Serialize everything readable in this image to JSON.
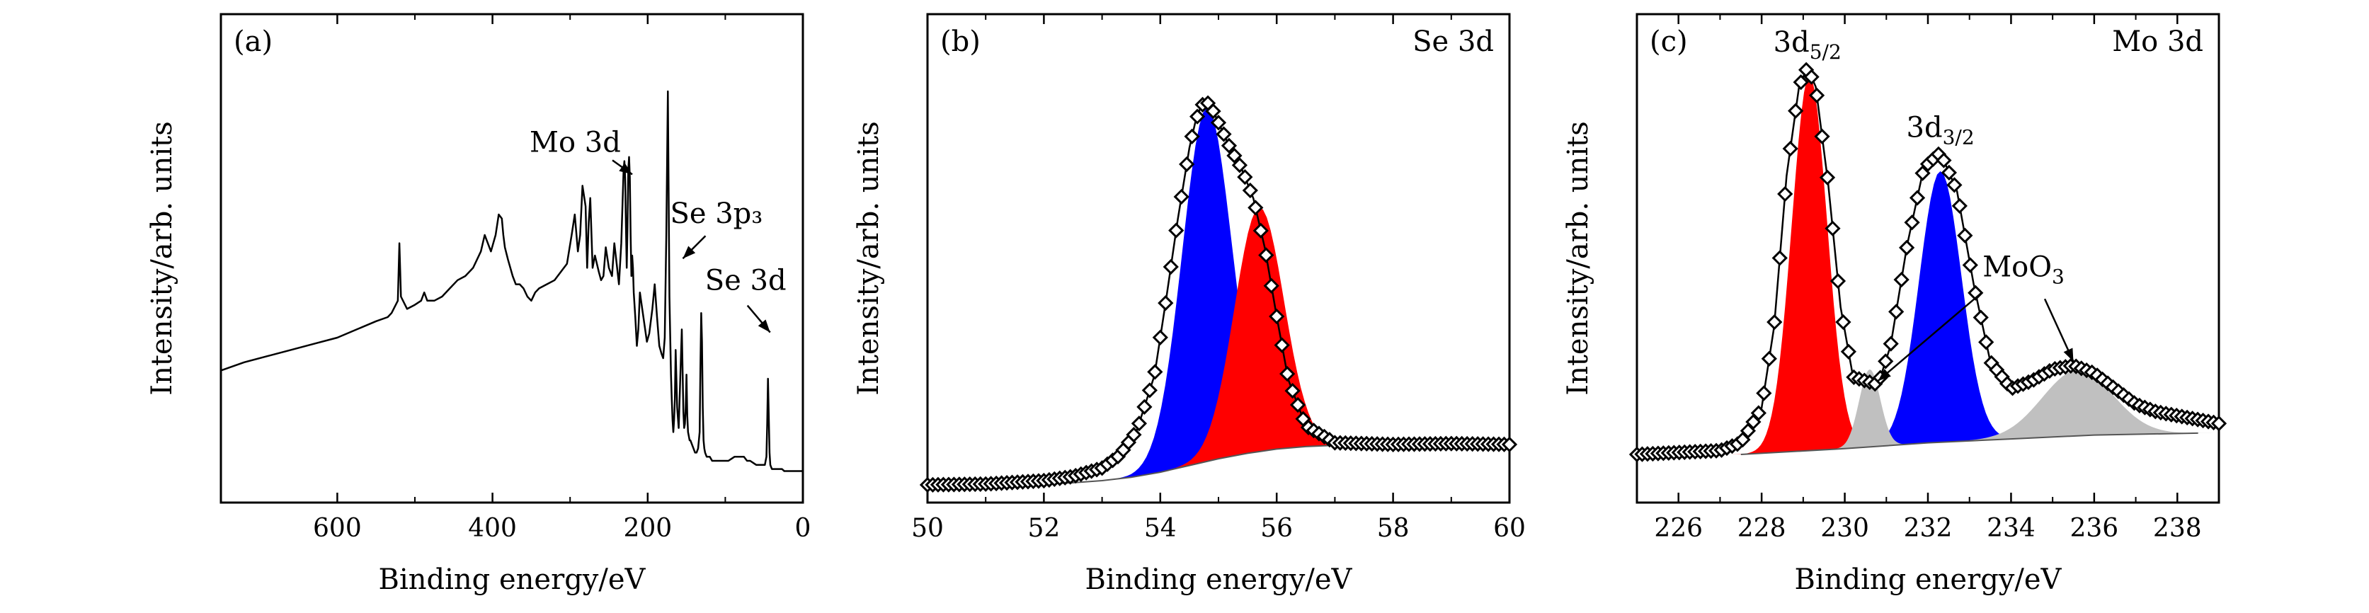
{
  "chart_data": [
    {
      "type": "line",
      "panel": "(a)",
      "xlabel": "Binding energy/eV",
      "ylabel": "Intensity/arb. units",
      "xlim": [
        750,
        0
      ],
      "xreversed": true,
      "ylim": [
        0,
        100
      ],
      "xticks": [
        600,
        400,
        200,
        0
      ],
      "annotations": [
        {
          "text": "Mo 3d",
          "x": 229,
          "y": 82
        },
        {
          "text": "Se 3p₃",
          "x": 162,
          "y": 56
        },
        {
          "text": "Se 3d",
          "x": 55,
          "y": 38
        }
      ],
      "series": [
        {
          "color": "#000000",
          "x": [
            750,
            720,
            690,
            660,
            630,
            600,
            575,
            550,
            535,
            530,
            522,
            520,
            518,
            510,
            500,
            492,
            488,
            484,
            475,
            465,
            455,
            445,
            435,
            425,
            415,
            410,
            406,
            402,
            396,
            392,
            388,
            386,
            384,
            380,
            374,
            370,
            365,
            360,
            355,
            350,
            345,
            340,
            330,
            320,
            312,
            304,
            298,
            294,
            290,
            287,
            284,
            280,
            278,
            276,
            274,
            271,
            268,
            263,
            260,
            257,
            254,
            250,
            246,
            243,
            240,
            237,
            234,
            232,
            231,
            230,
            229,
            228,
            227,
            226,
            225,
            224,
            223,
            222,
            221,
            220,
            219,
            218,
            216,
            214,
            212,
            210,
            207,
            204,
            201,
            198,
            194,
            191,
            188,
            185,
            182,
            180,
            178,
            176,
            174,
            172,
            170,
            169,
            168,
            167,
            166,
            165,
            164,
            162,
            160,
            158,
            156,
            155,
            154,
            153,
            152,
            151,
            150,
            149,
            148,
            147,
            146,
            145,
            143,
            141,
            139,
            137,
            135,
            133,
            132,
            131,
            130,
            129,
            128,
            127,
            126,
            124,
            122,
            120,
            117,
            113,
            109,
            105,
            100,
            96,
            92,
            88,
            84,
            80,
            76,
            72,
            68,
            64,
            60,
            56,
            52,
            49,
            47,
            46,
            45,
            44,
            43,
            42,
            40,
            38,
            36,
            33,
            30,
            27,
            24,
            20,
            16,
            12,
            8,
            4,
            0
          ],
          "y": [
            27,
            29,
            30.5,
            32,
            33.5,
            35,
            37,
            39,
            40,
            41,
            44,
            58,
            45,
            42,
            43,
            44,
            46,
            44,
            44,
            45,
            47,
            49,
            50,
            52,
            56,
            60,
            58,
            56,
            60,
            65,
            64,
            60,
            57,
            54,
            50,
            48,
            48,
            47,
            45,
            44,
            46,
            47,
            48,
            49,
            51,
            53,
            60,
            65,
            56,
            60,
            72,
            67,
            52,
            63,
            69,
            52,
            55,
            51,
            49,
            50,
            57,
            52,
            50,
            58,
            53,
            48,
            58,
            70,
            76,
            78,
            74,
            62,
            52,
            62,
            76,
            79,
            74,
            60,
            50,
            55,
            52,
            46,
            40,
            33,
            37,
            46,
            42,
            38,
            34,
            36,
            42,
            48,
            40,
            33,
            31,
            30,
            35,
            60,
            95,
            45,
            26,
            20,
            15,
            12,
            15,
            20,
            32,
            18,
            13,
            25,
            37,
            27,
            17,
            13,
            14,
            18,
            26,
            16,
            12,
            11,
            10,
            10,
            9,
            8,
            7,
            7,
            8,
            12,
            28,
            41,
            34,
            18,
            10,
            8,
            7,
            6,
            6,
            6,
            5,
            5,
            5,
            5,
            5,
            5,
            5.5,
            6,
            6,
            6,
            6,
            5,
            5,
            4.5,
            4,
            4,
            4,
            4,
            6,
            14,
            25,
            16,
            7,
            4,
            3,
            3,
            3,
            3,
            3,
            3,
            2.5,
            2.5,
            2.5,
            2.5,
            2.5,
            2.5,
            2.5
          ]
        }
      ]
    },
    {
      "type": "area",
      "panel": "(b)",
      "title": "Se 3d",
      "xlabel": "Binding energy/eV",
      "ylabel": "Intensity/arb. units",
      "xlim": [
        50,
        60
      ],
      "ylim": [
        0,
        100
      ],
      "xticks": [
        50,
        52,
        54,
        56,
        58,
        60
      ],
      "baseline": {
        "x": [
          50,
          51,
          52,
          52.5,
          53,
          53.5,
          54,
          54.5,
          55,
          55.5,
          56,
          56.5,
          57,
          58,
          59,
          60
        ],
        "y": [
          0,
          0,
          0.2,
          0.5,
          1,
          1.8,
          3,
          4.6,
          6.2,
          7.5,
          8.5,
          9.1,
          9.4,
          9.5,
          9.5,
          9.5
        ]
      },
      "series": [
        {
          "name": "",
          "color": "#0000ff",
          "center": 54.8,
          "fwhm": 1.0,
          "height": 84
        },
        {
          "name": "",
          "color": "#ff0000",
          "center": 55.7,
          "fwhm": 1.0,
          "height": 58
        }
      ],
      "envelope": {
        "x": [
          50,
          51,
          52,
          52.5,
          53,
          53.3,
          53.6,
          53.9,
          54.1,
          54.3,
          54.5,
          54.6,
          54.7,
          54.8,
          54.9,
          55,
          55.2,
          55.4,
          55.6,
          55.8,
          56,
          56.2,
          56.5,
          57,
          58,
          59,
          60
        ],
        "y": [
          0,
          0.2,
          1,
          2,
          4,
          7,
          13,
          26,
          44,
          63,
          80,
          86,
          90,
          91,
          89,
          86,
          80,
          75,
          68,
          56,
          40,
          25,
          14,
          10,
          9.6,
          9.8,
          9.6
        ]
      }
    },
    {
      "type": "area",
      "panel": "(c)",
      "title": "Mo 3d",
      "xlabel": "Binding energy/eV",
      "ylabel": "Intensity/arb. units",
      "xlim": [
        225,
        239
      ],
      "ylim": [
        0,
        100
      ],
      "xticks": [
        226,
        228,
        230,
        232,
        234,
        236,
        238
      ],
      "annotations": [
        {
          "text": "3d",
          "sub": "5/2",
          "x": 229.1,
          "y": 100
        },
        {
          "text": "3d",
          "sub": "3/2",
          "x": 232.3,
          "y": 78
        },
        {
          "text": "MoO",
          "sub": "3",
          "x": 234.3,
          "y": 42
        }
      ],
      "baseline": {
        "x": [
          227.5,
          230,
          232,
          234,
          236,
          238.5
        ],
        "y": [
          0,
          1.5,
          3,
          4,
          5,
          5.5
        ]
      },
      "series": [
        {
          "name": "",
          "color": "#ff0000",
          "center": 229.15,
          "fwhm": 1.0,
          "height": 97
        },
        {
          "name": "",
          "color": "#0000ff",
          "center": 232.3,
          "fwhm": 1.2,
          "height": 70
        },
        {
          "name": "",
          "color": "#c0c0c0",
          "center": 230.6,
          "fwhm": 0.6,
          "height": 20
        },
        {
          "name": "",
          "color": "#c0c0c0",
          "center": 235.6,
          "fwhm": 2.0,
          "height": 17
        }
      ],
      "envelope": {
        "x": [
          225,
          226,
          227,
          227.5,
          228,
          228.3,
          228.6,
          228.9,
          229.1,
          229.3,
          229.6,
          229.9,
          230.2,
          230.5,
          230.8,
          231.1,
          231.5,
          231.9,
          232.3,
          232.7,
          233.1,
          233.5,
          234,
          234.5,
          235,
          235.5,
          236,
          236.5,
          237,
          237.5,
          238,
          238.5,
          239
        ],
        "y": [
          0,
          0.5,
          1,
          3,
          12,
          33,
          72,
          95,
          100,
          95,
          70,
          38,
          20,
          19,
          18,
          28,
          54,
          74,
          78,
          68,
          44,
          24,
          17,
          19,
          22,
          23,
          21,
          17,
          13,
          11,
          10,
          9,
          8
        ]
      }
    }
  ]
}
